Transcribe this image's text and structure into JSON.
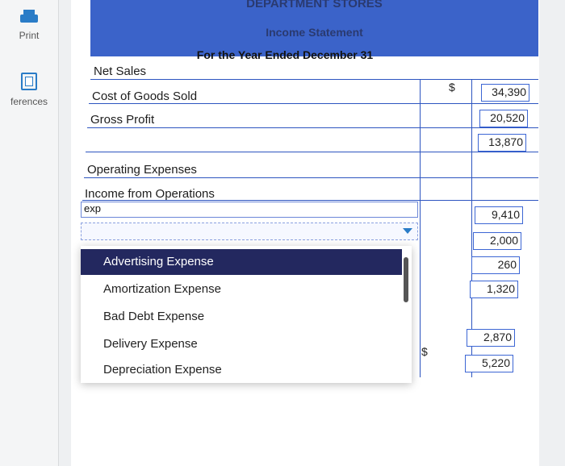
{
  "sidebar": {
    "print_label": "Print",
    "references_label": "ferences"
  },
  "header": {
    "company": "DEPARTMENT STORES",
    "statement": "Income Statement",
    "period": "For the Year Ended December 31"
  },
  "rows": {
    "net_sales": "Net Sales",
    "cogs": "Cost of Goods Sold",
    "gross_profit": "Gross Profit",
    "operating_expenses": "Operating Expenses",
    "income_from_operations": "Income from Operations"
  },
  "input": {
    "value": "exp"
  },
  "dropdown": {
    "options": [
      "Advertising Expense",
      "Amortization Expense",
      "Bad Debt Expense",
      "Delivery Expense",
      "Depreciation Expense"
    ],
    "selected_index": 0
  },
  "values": {
    "currency": "$",
    "v1": "34,390",
    "v2": "20,520",
    "v3": "13,870",
    "v4": "9,410",
    "v5": "2,000",
    "v6": "260",
    "v7": "1,320",
    "v8": "2,870",
    "v9": "5,220"
  },
  "colors": {
    "header_blue": "#3b63c9",
    "selected_option": "#23285f"
  }
}
